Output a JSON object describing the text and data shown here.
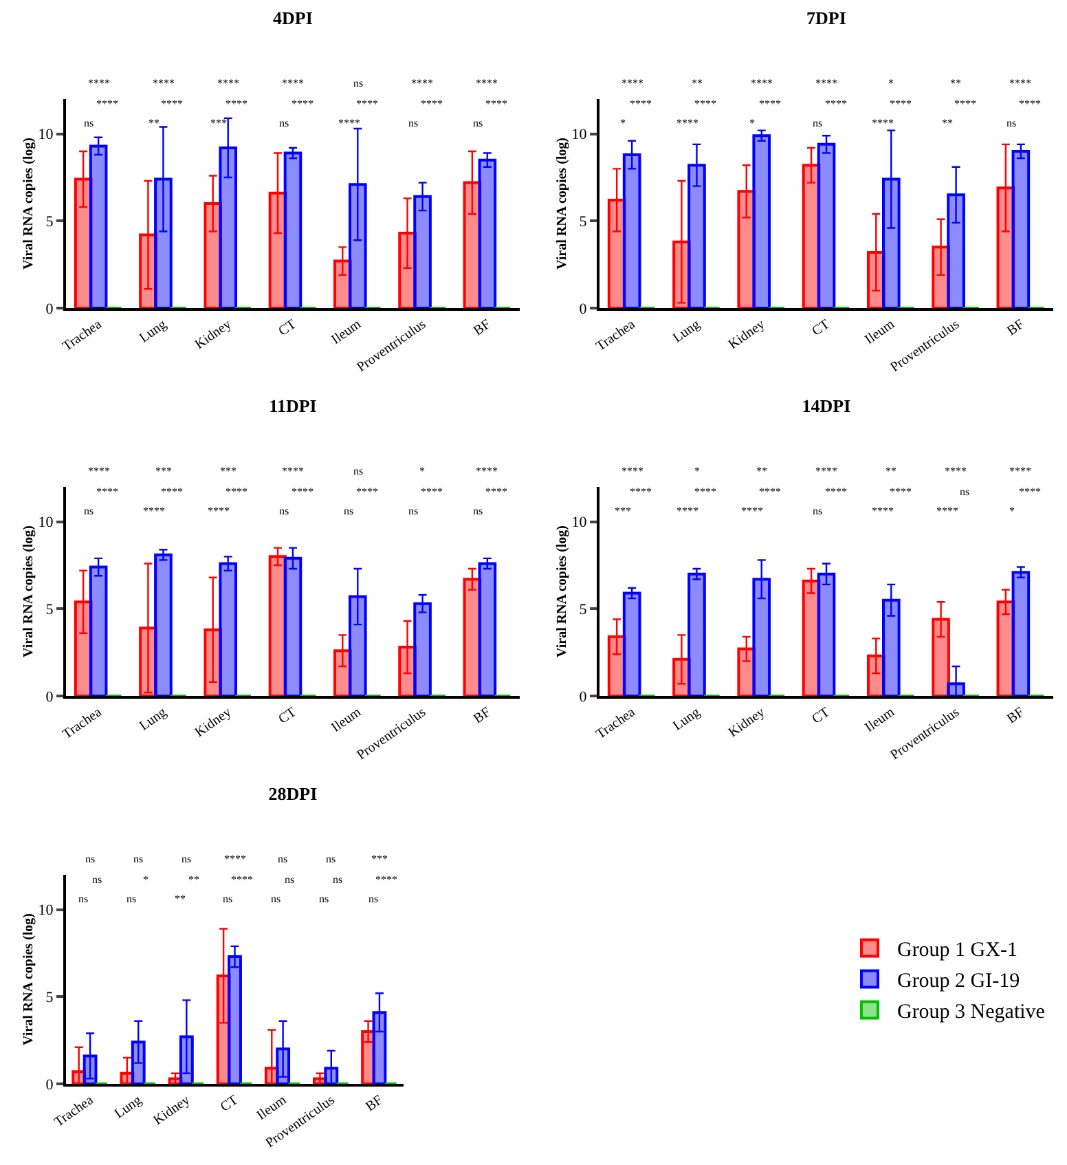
{
  "chart_data": [
    {
      "type": "bar",
      "title": "4DPI",
      "ylabel": "Viral RNA copies (log)",
      "categories": [
        "Trachea",
        "Lung",
        "Kidney",
        "CT",
        "Ileum",
        "Proventriculus",
        "BF"
      ],
      "ylim": [
        0,
        12
      ],
      "yticks": [
        0,
        5,
        10
      ],
      "series": [
        {
          "color": "#ff0000",
          "values": [
            7.4,
            4.2,
            6.0,
            6.6,
            2.7,
            4.3,
            7.2
          ],
          "errors": [
            1.6,
            3.1,
            1.6,
            2.3,
            0.8,
            2.0,
            1.8
          ]
        },
        {
          "color": "#0000ff",
          "values": [
            9.3,
            7.4,
            9.2,
            8.9,
            7.1,
            6.4,
            8.5
          ],
          "errors": [
            0.5,
            3.0,
            1.7,
            0.3,
            3.2,
            0.8,
            0.4
          ]
        },
        {
          "color": "#00c000",
          "values": [
            0,
            0,
            0,
            0,
            0,
            0,
            0
          ]
        }
      ],
      "annotations": [
        "****",
        "ns",
        "****",
        "****",
        "**",
        "****",
        "****",
        "***",
        "****",
        "****",
        "ns",
        "****",
        "ns",
        "****",
        "****",
        "****",
        "ns",
        "****",
        "****",
        "ns",
        "****"
      ]
    },
    {
      "type": "bar",
      "title": "7DPI",
      "ylabel": "Viral RNA copies (log)",
      "categories": [
        "Trachea",
        "Lung",
        "Kidney",
        "CT",
        "Ileum",
        "Proventriculus",
        "BF"
      ],
      "ylim": [
        0,
        12
      ],
      "yticks": [
        0,
        5,
        10
      ],
      "series": [
        {
          "color": "#ff0000",
          "values": [
            6.2,
            3.8,
            6.7,
            8.2,
            3.2,
            3.5,
            6.9
          ],
          "errors": [
            1.8,
            3.5,
            1.5,
            1.0,
            2.2,
            1.6,
            2.5
          ]
        },
        {
          "color": "#0000ff",
          "values": [
            8.8,
            8.2,
            9.9,
            9.4,
            7.4,
            6.5,
            9.0
          ],
          "errors": [
            0.8,
            1.2,
            0.3,
            0.5,
            2.8,
            1.6,
            0.4
          ]
        },
        {
          "color": "#00c000",
          "values": [
            0,
            0,
            0,
            0,
            0,
            0,
            0
          ]
        }
      ],
      "annotations": [
        "****",
        "*",
        "****",
        "**",
        "****",
        "****",
        "****",
        "*",
        "****",
        "****",
        "ns",
        "****",
        "*",
        "****",
        "****",
        "**",
        "**",
        "****",
        "****",
        "ns",
        "****"
      ]
    },
    {
      "type": "bar",
      "title": "11DPI",
      "ylabel": "Viral RNA copies (log)",
      "categories": [
        "Trachea",
        "Lung",
        "Kidney",
        "CT",
        "Ileum",
        "Proventriculus",
        "BF"
      ],
      "ylim": [
        0,
        12
      ],
      "yticks": [
        0,
        5,
        10
      ],
      "series": [
        {
          "color": "#ff0000",
          "values": [
            5.4,
            3.9,
            3.8,
            8.0,
            2.6,
            2.8,
            6.7
          ],
          "errors": [
            1.8,
            3.7,
            3.0,
            0.5,
            0.9,
            1.5,
            0.6
          ]
        },
        {
          "color": "#0000ff",
          "values": [
            7.4,
            8.1,
            7.6,
            7.9,
            5.7,
            5.3,
            7.6
          ],
          "errors": [
            0.5,
            0.3,
            0.4,
            0.6,
            1.6,
            0.5,
            0.3
          ]
        },
        {
          "color": "#00c000",
          "values": [
            0,
            0,
            0,
            0,
            0,
            0,
            0
          ]
        }
      ],
      "annotations": [
        "****",
        "ns",
        "****",
        "***",
        "****",
        "****",
        "***",
        "****",
        "****",
        "****",
        "ns",
        "****",
        "ns",
        "ns",
        "****",
        "*",
        "ns",
        "****",
        "****",
        "ns",
        "****"
      ]
    },
    {
      "type": "bar",
      "title": "14DPI",
      "ylabel": "Viral RNA copies (log)",
      "categories": [
        "Trachea",
        "Lung",
        "Kidney",
        "CT",
        "Ileum",
        "Proventriculus",
        "BF"
      ],
      "ylim": [
        0,
        12
      ],
      "yticks": [
        0,
        5,
        10
      ],
      "series": [
        {
          "color": "#ff0000",
          "values": [
            3.4,
            2.1,
            2.7,
            6.6,
            2.3,
            4.4,
            5.4
          ],
          "errors": [
            1.0,
            1.4,
            0.7,
            0.7,
            1.0,
            1.0,
            0.7
          ]
        },
        {
          "color": "#0000ff",
          "values": [
            5.9,
            7.0,
            6.7,
            7.0,
            5.5,
            0.7,
            7.1
          ],
          "errors": [
            0.3,
            0.3,
            1.1,
            0.6,
            0.9,
            1.0,
            0.3
          ]
        },
        {
          "color": "#00c000",
          "values": [
            0,
            0,
            0,
            0,
            0,
            0,
            0
          ]
        }
      ],
      "annotations": [
        "****",
        "***",
        "****",
        "*",
        "****",
        "****",
        "**",
        "****",
        "****",
        "****",
        "ns",
        "****",
        "**",
        "****",
        "****",
        "****",
        "****",
        "ns",
        "****",
        "*",
        "****"
      ]
    },
    {
      "type": "bar",
      "title": "28DPI",
      "ylabel": "Viral RNA copies (log)",
      "categories": [
        "Trachea",
        "Lung",
        "Kidney",
        "CT",
        "Ileum",
        "Proventriculus",
        "BF"
      ],
      "ylim": [
        0,
        12
      ],
      "yticks": [
        0,
        5,
        10
      ],
      "legend": "right",
      "series": [
        {
          "name": "Group 1 GX-1",
          "color": "#ff0000",
          "values": [
            0.7,
            0.6,
            0.3,
            6.2,
            0.9,
            0.3,
            3.0
          ],
          "errors": [
            1.4,
            0.9,
            0.3,
            2.7,
            2.2,
            0.3,
            0.6
          ]
        },
        {
          "name": "Group 2 GI-19",
          "color": "#0000ff",
          "values": [
            1.6,
            2.4,
            2.7,
            7.3,
            2.0,
            0.9,
            4.1
          ],
          "errors": [
            1.3,
            1.2,
            2.1,
            0.6,
            1.6,
            1.0,
            1.1
          ]
        },
        {
          "name": "Group 3 Negative",
          "color": "#00c000",
          "values": [
            0,
            0,
            0,
            0,
            0,
            0,
            0
          ]
        }
      ],
      "annotations": [
        "ns",
        "ns",
        "ns",
        "ns",
        "ns",
        "*",
        "ns",
        "**",
        "**",
        "****",
        "ns",
        "****",
        "ns",
        "ns",
        "ns",
        "ns",
        "ns",
        "ns",
        "***",
        "ns",
        "****"
      ]
    }
  ]
}
